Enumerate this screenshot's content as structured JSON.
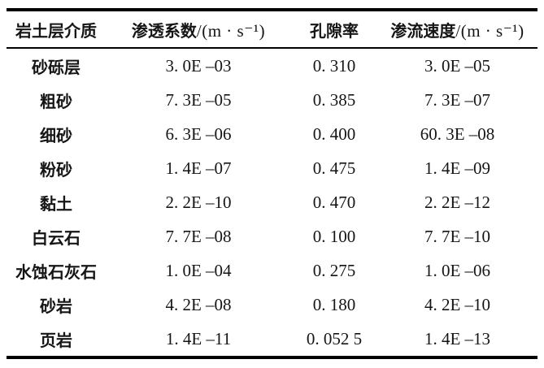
{
  "page": {
    "background_color": "#ffffff",
    "text_color": "#151515",
    "rule_color": "#000000"
  },
  "table": {
    "columns": [
      {
        "key": "medium",
        "label": "岩土层介质",
        "unit": ""
      },
      {
        "key": "permeability",
        "label": "渗透系数",
        "unit": "/(m · s⁻¹)"
      },
      {
        "key": "porosity",
        "label": "孔隙率",
        "unit": ""
      },
      {
        "key": "velocity",
        "label": "渗流速度",
        "unit": "/(m · s⁻¹)"
      }
    ],
    "rows": [
      {
        "medium": "砂砾层",
        "permeability": "3. 0E –03",
        "porosity": "0. 310",
        "velocity": "3. 0E –05"
      },
      {
        "medium": "粗砂",
        "permeability": "7. 3E –05",
        "porosity": "0. 385",
        "velocity": "7. 3E –07"
      },
      {
        "medium": "细砂",
        "permeability": "6. 3E –06",
        "porosity": "0. 400",
        "velocity": "60. 3E –08"
      },
      {
        "medium": "粉砂",
        "permeability": "1. 4E –07",
        "porosity": "0. 475",
        "velocity": "1. 4E –09"
      },
      {
        "medium": "黏土",
        "permeability": "2. 2E –10",
        "porosity": "0. 470",
        "velocity": "2. 2E –12"
      },
      {
        "medium": "白云石",
        "permeability": "7. 7E –08",
        "porosity": "0. 100",
        "velocity": "7. 7E –10"
      },
      {
        "medium": "水蚀石灰石",
        "permeability": "1. 0E –04",
        "porosity": "0. 275",
        "velocity": "1. 0E –06"
      },
      {
        "medium": "砂岩",
        "permeability": "4. 2E –08",
        "porosity": "0. 180",
        "velocity": "4. 2E –10"
      },
      {
        "medium": "页岩",
        "permeability": "1. 4E –11",
        "porosity": "0. 052 5",
        "velocity": "1. 4E –13"
      }
    ]
  }
}
